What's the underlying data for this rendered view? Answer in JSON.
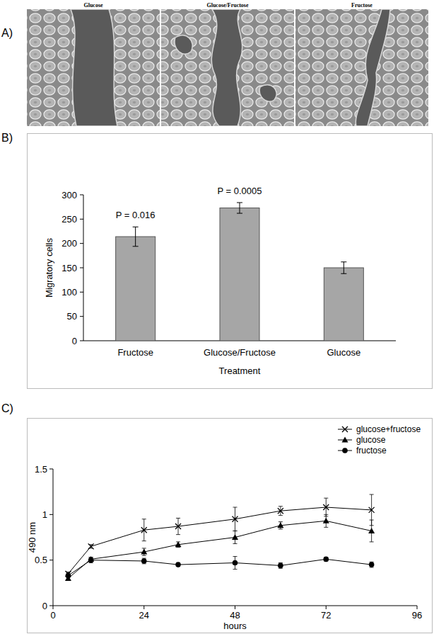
{
  "figure": {
    "panel_a": {
      "label": "A)",
      "images": [
        "Glucose",
        "Glucose/Fructose",
        "Fructose"
      ]
    }
  },
  "chart_data": [
    {
      "type": "bar",
      "panel_label": "B)",
      "categories": [
        "Fructose",
        "Glucose/Fructose",
        "Glucose"
      ],
      "values": [
        214,
        273,
        150
      ],
      "errors": [
        20,
        11,
        12
      ],
      "annotations": [
        "P = 0.016",
        "P = 0.0005",
        null
      ],
      "color": "#a6a6a6",
      "x_label": "Treatment",
      "y_label": "Migratory cells",
      "ylim": [
        0,
        300
      ],
      "yticks": [
        0,
        50,
        100,
        150,
        200,
        250,
        300
      ],
      "grid": false
    },
    {
      "type": "line",
      "panel_label": "C)",
      "x": [
        4,
        10,
        24,
        33,
        48,
        60,
        72,
        84
      ],
      "series": [
        {
          "name": "glucose+fructose",
          "color": "#000000",
          "marker": "x",
          "values": [
            0.35,
            0.65,
            0.83,
            0.87,
            0.95,
            1.04,
            1.08,
            1.05
          ],
          "errors": [
            0.02,
            0.02,
            0.12,
            0.09,
            0.13,
            0.05,
            0.1,
            0.17
          ]
        },
        {
          "name": "glucose",
          "color": "#000000",
          "marker": "triangle",
          "values": [
            0.3,
            0.51,
            0.59,
            0.67,
            0.75,
            0.88,
            0.93,
            0.82
          ],
          "errors": [
            0.02,
            0.02,
            0.04,
            0.03,
            0.07,
            0.04,
            0.07,
            0.12
          ]
        },
        {
          "name": "fructose",
          "color": "#000000",
          "marker": "circle",
          "values": [
            0.33,
            0.5,
            0.49,
            0.45,
            0.47,
            0.44,
            0.51,
            0.45
          ],
          "errors": [
            0.02,
            0.03,
            0.03,
            0.02,
            0.07,
            0.03,
            0.02,
            0.03
          ]
        }
      ],
      "x_label": "hours",
      "y_label": "490 nm",
      "xlim": [
        0,
        96
      ],
      "xticks": [
        0,
        24,
        48,
        72,
        96
      ],
      "ylim": [
        0,
        1.5
      ],
      "yticks": [
        0,
        0.5,
        1,
        1.5
      ],
      "legend": "upper-right",
      "grid": false
    }
  ]
}
